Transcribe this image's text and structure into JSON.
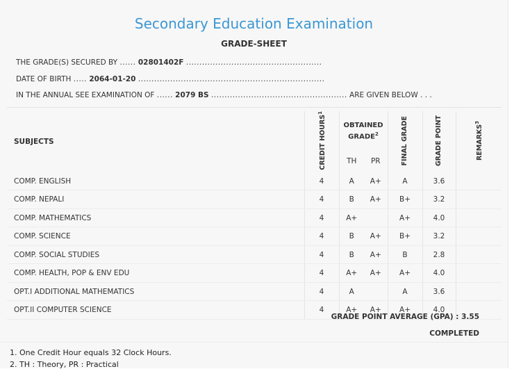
{
  "title": "Secondary Education Examination",
  "subtitle": "GRADE-SHEET",
  "info": {
    "line1": {
      "label": "THE GRADE(S) SECURED BY",
      "lead": "......",
      "value": "02801402F",
      "trail": "..................................................."
    },
    "line2": {
      "label": "DATE OF BIRTH",
      "lead": ".....",
      "value": "2064-01-20",
      "trail": "......................................................................"
    },
    "line3": {
      "label": "IN THE ANNUAL SEE EXAMINATION OF",
      "lead": "......",
      "value": "2079 BS",
      "trail": "...................................................",
      "end": "ARE GIVEN BELOW . . ."
    }
  },
  "table": {
    "col_subjects": "SUBJECTS",
    "col_credit": "CREDIT HOURS",
    "col_credit_sup": "1",
    "col_obtained": "OBTAINED GRADE",
    "col_obtained_sup": "2",
    "col_th": "TH",
    "col_pr": "PR",
    "col_final": "FINAL GRADE",
    "col_gpoint": "GRADE POINT",
    "col_remarks": "REMARKS",
    "col_remarks_sup": "3",
    "rows": [
      {
        "subject": "COMP. ENGLISH",
        "credit": "4",
        "th": "A",
        "pr": "A+",
        "final": "A",
        "point": "3.6"
      },
      {
        "subject": "COMP. NEPALI",
        "credit": "4",
        "th": "B",
        "pr": "A+",
        "final": "B+",
        "point": "3.2"
      },
      {
        "subject": "COMP. MATHEMATICS",
        "credit": "4",
        "th": "A+",
        "pr": "",
        "final": "A+",
        "point": "4.0"
      },
      {
        "subject": "COMP. SCIENCE",
        "credit": "4",
        "th": "B",
        "pr": "A+",
        "final": "B+",
        "point": "3.2"
      },
      {
        "subject": "COMP. SOCIAL STUDIES",
        "credit": "4",
        "th": "B",
        "pr": "A+",
        "final": "B",
        "point": "2.8"
      },
      {
        "subject": "COMP. HEALTH, POP & ENV EDU",
        "credit": "4",
        "th": "A+",
        "pr": "A+",
        "final": "A+",
        "point": "4.0"
      },
      {
        "subject": "OPT.I ADDITIONAL MATHEMATICS",
        "credit": "4",
        "th": "A",
        "pr": "",
        "final": "A",
        "point": "3.6"
      },
      {
        "subject": "OPT.II COMPUTER SCIENCE",
        "credit": "4",
        "th": "A+",
        "pr": "A+",
        "final": "A+",
        "point": "4.0"
      }
    ]
  },
  "gpa_text": "GRADE POINT AVERAGE (GPA) : 3.55",
  "status": "COMPLETED",
  "notes": [
    "1. One Credit Hour equals 32 Clock Hours.",
    "2. TH : Theory, PR : Practical"
  ]
}
